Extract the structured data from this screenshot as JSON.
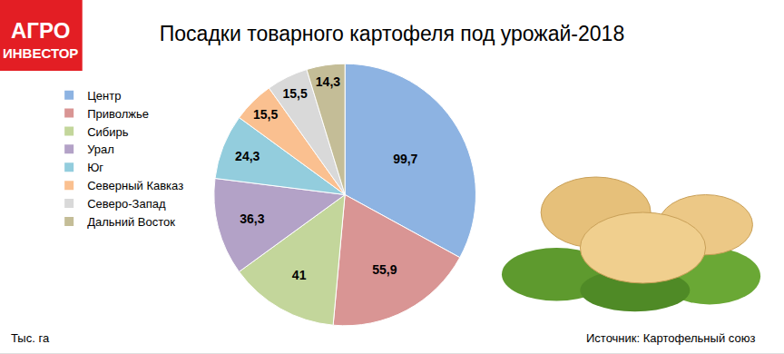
{
  "chart_data": {
    "type": "pie",
    "title": "Посадки товарного картофеля под урожай-2018",
    "logo": [
      "АГРО",
      "ИНВЕСТОР"
    ],
    "annotations": [
      "Тыс. га",
      "Источник: Картофельный союз"
    ],
    "categories": [
      "Центр",
      "Приволжье",
      "Сибирь",
      "Урал",
      "Юг",
      "Северный Кавказ",
      "Северо-Запад",
      "Дальний Восток"
    ],
    "values": [
      99.7,
      55.9,
      41,
      36.3,
      24.3,
      15.5,
      15.5,
      14.3
    ],
    "value_labels": [
      "99,7",
      "55,9",
      "41",
      "36,3",
      "24,3",
      "15,5",
      "15,5",
      "14,3"
    ],
    "colors": [
      "#8db3e2",
      "#d99594",
      "#c3d69b",
      "#b3a2c7",
      "#93cddd",
      "#fac090",
      "#d9d9d9",
      "#c4bd97"
    ],
    "data_labels": true,
    "legend": "left"
  }
}
